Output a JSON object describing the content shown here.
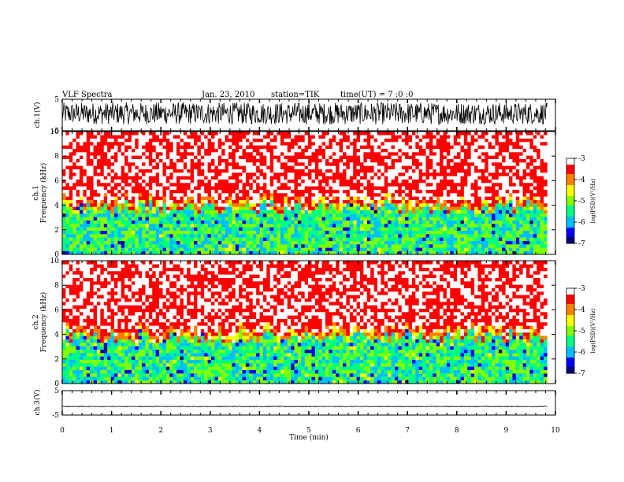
{
  "header": {
    "title": "VLF Spectra",
    "date": "Jan. 23, 2010",
    "station": "station=TIK",
    "start_time": "time(UT) = 7 :0 :0"
  },
  "chart_data": [
    {
      "type": "line",
      "panel": "ch1-waveform",
      "ylabel": "ch.1(V)",
      "xlim": [
        0,
        10
      ],
      "xdata_end": 9.83,
      "ylim": [
        -5,
        5
      ],
      "yticks": [
        "5",
        "-5"
      ],
      "signal": {
        "baseline": 0.5,
        "amplitude": 3.5,
        "color": "#000000"
      }
    },
    {
      "type": "heatmap",
      "panel": "ch1-spectrogram",
      "ylabel": "ch.1\nFrequency (kHz)",
      "xlim": [
        0,
        10
      ],
      "xdata_end": 9.83,
      "ylim": [
        0,
        10
      ],
      "yticks": [
        "0",
        "2",
        "4",
        "6",
        "8",
        "10"
      ],
      "colorbar": {
        "label": "log(PSD)(V²/Hz)",
        "range": [
          -7,
          -3
        ],
        "ticks": [
          "-3",
          "-4",
          "-5",
          "-6",
          "-7"
        ],
        "colormap": [
          "#000080",
          "#0000ff",
          "#00c0ff",
          "#00ff80",
          "#80ff00",
          "#ffff00",
          "#ff8000",
          "#ff0000",
          "#ffffff"
        ]
      }
    },
    {
      "type": "heatmap",
      "panel": "ch2-spectrogram",
      "ylabel": "ch.2\nFrequency (kHz)",
      "xlim": [
        0,
        10
      ],
      "xdata_end": 9.83,
      "ylim": [
        0,
        10
      ],
      "yticks": [
        "0",
        "2",
        "4",
        "6",
        "8",
        "10"
      ],
      "colorbar": {
        "label": "log(PSD)(V²/Hz)",
        "range": [
          -7,
          -3
        ],
        "ticks": [
          "-3",
          "-4",
          "-5",
          "-6",
          "-7"
        ],
        "colormap": [
          "#000080",
          "#0000ff",
          "#00c0ff",
          "#00ff80",
          "#80ff00",
          "#ffff00",
          "#ff8000",
          "#ff0000",
          "#ffffff"
        ]
      }
    },
    {
      "type": "line",
      "panel": "ch3-waveform",
      "ylabel": "ch.3(V)",
      "xlim": [
        0,
        10
      ],
      "xdata_end": 9.83,
      "ylim": [
        -5,
        5
      ],
      "yticks": [
        "5",
        "-5"
      ],
      "signal": {
        "baseline": -1.5,
        "amplitude": 0.15,
        "color": "#000000"
      }
    }
  ],
  "xaxis": {
    "label": "Time (min)",
    "ticks": [
      "0",
      "1",
      "2",
      "3",
      "4",
      "5",
      "6",
      "7",
      "8",
      "9",
      "10"
    ]
  }
}
